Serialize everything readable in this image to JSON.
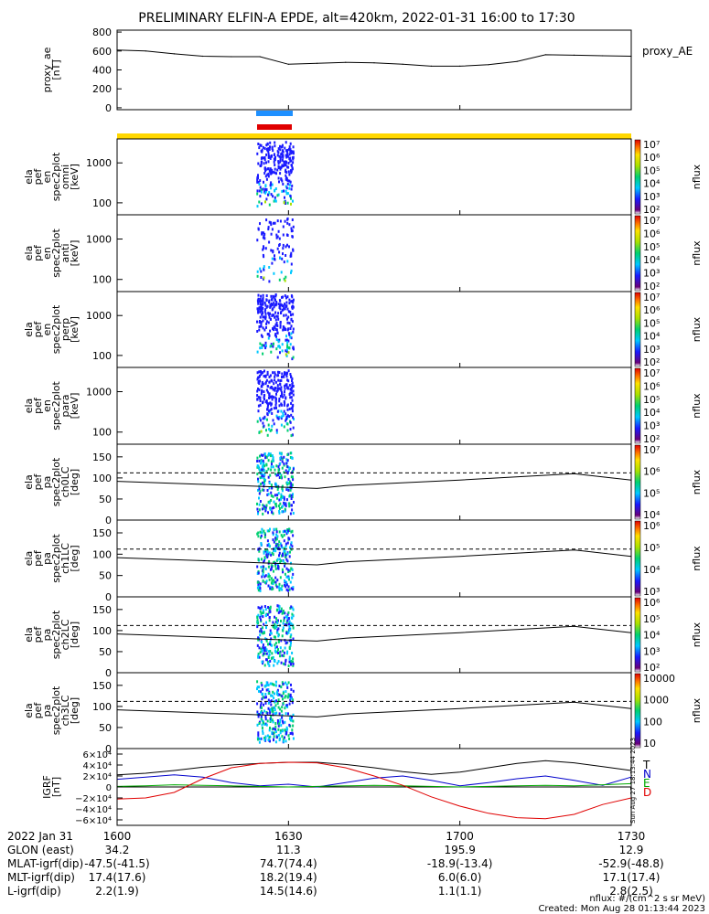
{
  "title": "PRELIMINARY ELFIN-A EPDE, alt=420km, 2022-01-31 16:00 to 17:30",
  "colors": {
    "science_zone_bar": "#FFD700",
    "blue_bar": "#1E90FF",
    "red_bar": "#E00000",
    "model_line": "#000000"
  },
  "chart_data": [
    {
      "id": "ae",
      "type": "line",
      "ylabel": "proxy_ae\n[nT]",
      "series_label": "proxy_AE",
      "yticks": [
        "800",
        "600",
        "400",
        "200",
        "0"
      ],
      "ylim": [
        -20,
        820
      ],
      "x": [
        "16:00",
        "16:05",
        "16:10",
        "16:15",
        "16:20",
        "16:25",
        "16:30",
        "16:35",
        "16:40",
        "16:45",
        "16:50",
        "16:55",
        "17:00",
        "17:05",
        "17:10",
        "17:15",
        "17:20",
        "17:25",
        "17:30"
      ],
      "values": [
        610,
        600,
        570,
        545,
        540,
        540,
        460,
        470,
        480,
        475,
        460,
        440,
        440,
        455,
        490,
        560,
        555,
        550,
        545
      ]
    },
    {
      "id": "spec0",
      "type": "heatmap",
      "ylabel": "ela\npef\nen\nspec2plot\nomni\n[keV]",
      "yticks": [
        "1000",
        "100"
      ],
      "colorbar_ticks": [
        "10⁷",
        "10⁶",
        "10⁵",
        "10⁴",
        "10³",
        "10²"
      ],
      "colorbar_label": "nflux"
    },
    {
      "id": "spec1",
      "type": "heatmap",
      "ylabel": "ela\npef\nen\nspec2plot\nanti\n[keV]",
      "yticks": [
        "1000",
        "100"
      ],
      "colorbar_ticks": [
        "10⁷",
        "10⁶",
        "10⁵",
        "10⁴",
        "10³",
        "10²"
      ],
      "colorbar_label": "nflux"
    },
    {
      "id": "spec2",
      "type": "heatmap",
      "ylabel": "ela\npef\nen\nspec2plot\nperp\n[keV]",
      "yticks": [
        "1000",
        "100"
      ],
      "colorbar_ticks": [
        "10⁷",
        "10⁶",
        "10⁵",
        "10⁴",
        "10³",
        "10²"
      ],
      "colorbar_label": "nflux"
    },
    {
      "id": "spec3",
      "type": "heatmap",
      "ylabel": "ela\npef\nen\nspec2plot\npara\n[keV]",
      "yticks": [
        "1000",
        "100"
      ],
      "colorbar_ticks": [
        "10⁷",
        "10⁶",
        "10⁵",
        "10⁴",
        "10³",
        "10²"
      ],
      "colorbar_label": "nflux"
    },
    {
      "id": "pa0",
      "type": "heatmap",
      "ylabel": "ela\npef\npa\nspec2plot\nch0LC\n[deg]",
      "yticks": [
        "150",
        "100",
        "50",
        "0"
      ],
      "colorbar_ticks": [
        "10⁷",
        "10⁶",
        "10⁵",
        "10⁴"
      ],
      "colorbar_label": "nflux"
    },
    {
      "id": "pa1",
      "type": "heatmap",
      "ylabel": "ela\npef\npa\nspec2plot\nch1LC\n[deg]",
      "yticks": [
        "150",
        "100",
        "50",
        "0"
      ],
      "colorbar_ticks": [
        "10⁶",
        "10⁵",
        "10⁴",
        "10³"
      ],
      "colorbar_label": "nflux"
    },
    {
      "id": "pa2",
      "type": "heatmap",
      "ylabel": "ela\npef\npa\nspec2plot\nch2LC\n[deg]",
      "yticks": [
        "150",
        "100",
        "50",
        "0"
      ],
      "colorbar_ticks": [
        "10⁶",
        "10⁵",
        "10⁴",
        "10³",
        "10²"
      ],
      "colorbar_label": "nflux"
    },
    {
      "id": "pa3",
      "type": "heatmap",
      "ylabel": "ela\npef\npa\nspec2plot\nch3LC\n[deg]",
      "yticks": [
        "150",
        "100",
        "50",
        "0"
      ],
      "colorbar_ticks": [
        "10000",
        "1000",
        "100",
        "10"
      ],
      "colorbar_label": "nflux"
    },
    {
      "id": "igrf",
      "type": "line",
      "ylabel": "IGRF\n[nT]",
      "yticks": [
        "6×10⁴",
        "4×10⁴",
        "2×10⁴",
        "0",
        "−2×10⁴",
        "−4×10⁴",
        "−6×10⁴"
      ],
      "legend": [
        "T",
        "N",
        "E",
        "D"
      ],
      "legend_colors": [
        "#000000",
        "#0000CC",
        "#00AA00",
        "#E00000"
      ],
      "stamp": "Sun Aug 27 18:13:44 2023",
      "x": [
        "16:00",
        "16:05",
        "16:10",
        "16:15",
        "16:20",
        "16:25",
        "16:30",
        "16:35",
        "16:40",
        "16:45",
        "16:50",
        "16:55",
        "17:00",
        "17:05",
        "17:10",
        "17:15",
        "17:20",
        "17:25",
        "17:30"
      ],
      "series": [
        {
          "name": "T",
          "values": [
            22000,
            25000,
            30000,
            36000,
            40000,
            43000,
            45000,
            45000,
            41000,
            35000,
            28000,
            23000,
            27000,
            35000,
            43000,
            48000,
            44000,
            37000,
            30000
          ]
        },
        {
          "name": "N",
          "values": [
            14000,
            18000,
            22000,
            18000,
            8000,
            2000,
            5000,
            0,
            8000,
            16000,
            20000,
            12000,
            2000,
            8000,
            15000,
            20000,
            12000,
            3000,
            18000
          ]
        },
        {
          "name": "E",
          "values": [
            1000,
            2000,
            4000,
            3000,
            2000,
            1000,
            0,
            1000,
            2000,
            3000,
            2000,
            1000,
            0,
            1000,
            2000,
            3000,
            2000,
            4000,
            6000
          ]
        },
        {
          "name": "D",
          "values": [
            -22000,
            -20000,
            -10000,
            15000,
            35000,
            43000,
            45000,
            44000,
            35000,
            20000,
            3000,
            -18000,
            -35000,
            -48000,
            -56000,
            -58000,
            -50000,
            -32000,
            -20000
          ]
        }
      ]
    }
  ],
  "footer": {
    "rows": [
      {
        "label": "2022 Jan 31",
        "v": [
          "1600",
          "1630",
          "1700",
          "1730"
        ]
      },
      {
        "label": "GLON (east)",
        "v": [
          "34.2",
          "11.3",
          "195.9",
          "12.9"
        ]
      },
      {
        "label": "MLAT-igrf(dip)",
        "v": [
          "-47.5(-41.5)",
          "74.7(74.4)",
          "-18.9(-13.4)",
          "-52.9(-48.8)"
        ]
      },
      {
        "label": "MLT-igrf(dip)",
        "v": [
          "17.4(17.6)",
          "18.2(19.4)",
          "6.0(6.0)",
          "17.1(17.4)"
        ]
      },
      {
        "label": "L-igrf(dip)",
        "v": [
          "2.2(1.9)",
          "14.5(14.6)",
          "1.1(1.1)",
          "2.8(2.5)"
        ]
      }
    ],
    "units_note": "nflux: #/(cm^2 s sr MeV)",
    "created": "Created: Mon Aug 28 01:13:44 2023"
  }
}
